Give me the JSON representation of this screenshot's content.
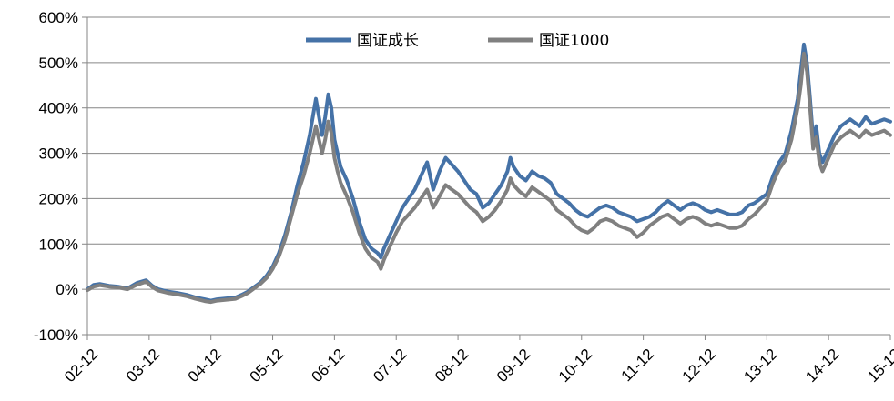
{
  "chart_data": {
    "type": "line",
    "title": "",
    "xlabel": "",
    "ylabel": "",
    "ylim": [
      -100,
      600
    ],
    "y_unit": "%",
    "y_ticks": [
      "600%",
      "500%",
      "400%",
      "300%",
      "200%",
      "100%",
      "0%",
      "-100%"
    ],
    "y_tick_values": [
      600,
      500,
      400,
      300,
      200,
      100,
      0,
      -100
    ],
    "x_ticks": [
      "02-12",
      "03-12",
      "04-12",
      "05-12",
      "06-12",
      "07-12",
      "08-12",
      "09-12",
      "10-12",
      "11-12",
      "12-12",
      "13-12",
      "14-12",
      "15-12"
    ],
    "grid": "horizontal",
    "legend_position": "top-center",
    "series": [
      {
        "name": "国证成长",
        "color": "#4572A7",
        "points": [
          [
            0,
            0
          ],
          [
            0.1,
            10
          ],
          [
            0.2,
            12
          ],
          [
            0.35,
            8
          ],
          [
            0.5,
            6
          ],
          [
            0.65,
            2
          ],
          [
            0.8,
            14
          ],
          [
            0.95,
            20
          ],
          [
            1.05,
            8
          ],
          [
            1.15,
            0
          ],
          [
            1.3,
            -5
          ],
          [
            1.45,
            -8
          ],
          [
            1.6,
            -12
          ],
          [
            1.75,
            -18
          ],
          [
            1.9,
            -22
          ],
          [
            2.0,
            -25
          ],
          [
            2.1,
            -22
          ],
          [
            2.25,
            -20
          ],
          [
            2.4,
            -18
          ],
          [
            2.5,
            -12
          ],
          [
            2.6,
            -5
          ],
          [
            2.7,
            5
          ],
          [
            2.8,
            15
          ],
          [
            2.9,
            30
          ],
          [
            3.0,
            50
          ],
          [
            3.1,
            80
          ],
          [
            3.2,
            120
          ],
          [
            3.3,
            170
          ],
          [
            3.4,
            230
          ],
          [
            3.5,
            280
          ],
          [
            3.6,
            340
          ],
          [
            3.7,
            420
          ],
          [
            3.75,
            380
          ],
          [
            3.8,
            340
          ],
          [
            3.85,
            380
          ],
          [
            3.9,
            430
          ],
          [
            3.95,
            400
          ],
          [
            4.0,
            330
          ],
          [
            4.05,
            300
          ],
          [
            4.1,
            270
          ],
          [
            4.2,
            240
          ],
          [
            4.3,
            200
          ],
          [
            4.4,
            150
          ],
          [
            4.5,
            110
          ],
          [
            4.6,
            90
          ],
          [
            4.7,
            80
          ],
          [
            4.75,
            70
          ],
          [
            4.8,
            90
          ],
          [
            4.9,
            120
          ],
          [
            5.0,
            150
          ],
          [
            5.1,
            180
          ],
          [
            5.2,
            200
          ],
          [
            5.3,
            220
          ],
          [
            5.4,
            250
          ],
          [
            5.5,
            280
          ],
          [
            5.55,
            250
          ],
          [
            5.6,
            220
          ],
          [
            5.7,
            260
          ],
          [
            5.8,
            290
          ],
          [
            5.9,
            275
          ],
          [
            6.0,
            260
          ],
          [
            6.1,
            240
          ],
          [
            6.2,
            220
          ],
          [
            6.3,
            210
          ],
          [
            6.4,
            180
          ],
          [
            6.5,
            190
          ],
          [
            6.6,
            210
          ],
          [
            6.7,
            230
          ],
          [
            6.8,
            260
          ],
          [
            6.85,
            290
          ],
          [
            6.9,
            270
          ],
          [
            7.0,
            250
          ],
          [
            7.1,
            240
          ],
          [
            7.2,
            260
          ],
          [
            7.3,
            250
          ],
          [
            7.4,
            245
          ],
          [
            7.5,
            235
          ],
          [
            7.6,
            210
          ],
          [
            7.7,
            200
          ],
          [
            7.8,
            190
          ],
          [
            7.9,
            175
          ],
          [
            8.0,
            165
          ],
          [
            8.1,
            160
          ],
          [
            8.2,
            170
          ],
          [
            8.3,
            180
          ],
          [
            8.4,
            185
          ],
          [
            8.5,
            180
          ],
          [
            8.6,
            170
          ],
          [
            8.7,
            165
          ],
          [
            8.8,
            160
          ],
          [
            8.9,
            150
          ],
          [
            9.0,
            155
          ],
          [
            9.1,
            160
          ],
          [
            9.2,
            170
          ],
          [
            9.3,
            185
          ],
          [
            9.4,
            195
          ],
          [
            9.5,
            185
          ],
          [
            9.6,
            175
          ],
          [
            9.7,
            185
          ],
          [
            9.8,
            190
          ],
          [
            9.9,
            185
          ],
          [
            10.0,
            175
          ],
          [
            10.1,
            170
          ],
          [
            10.2,
            175
          ],
          [
            10.3,
            170
          ],
          [
            10.4,
            165
          ],
          [
            10.5,
            165
          ],
          [
            10.6,
            170
          ],
          [
            10.7,
            185
          ],
          [
            10.8,
            190
          ],
          [
            10.9,
            200
          ],
          [
            11.0,
            210
          ],
          [
            11.1,
            250
          ],
          [
            11.2,
            280
          ],
          [
            11.3,
            300
          ],
          [
            11.4,
            350
          ],
          [
            11.5,
            420
          ],
          [
            11.55,
            480
          ],
          [
            11.6,
            540
          ],
          [
            11.65,
            500
          ],
          [
            11.7,
            420
          ],
          [
            11.75,
            330
          ],
          [
            11.8,
            360
          ],
          [
            11.85,
            300
          ],
          [
            11.9,
            280
          ],
          [
            12.0,
            310
          ],
          [
            12.1,
            340
          ],
          [
            12.2,
            360
          ],
          [
            12.3,
            370
          ],
          [
            12.35,
            375
          ],
          [
            12.4,
            370
          ],
          [
            12.5,
            360
          ],
          [
            12.6,
            380
          ],
          [
            12.7,
            365
          ],
          [
            12.8,
            370
          ],
          [
            12.9,
            375
          ],
          [
            13.0,
            370
          ]
        ]
      },
      {
        "name": "国证1000",
        "color": "#808080",
        "points": [
          [
            0,
            -2
          ],
          [
            0.1,
            6
          ],
          [
            0.2,
            9
          ],
          [
            0.35,
            6
          ],
          [
            0.5,
            4
          ],
          [
            0.65,
            0
          ],
          [
            0.8,
            10
          ],
          [
            0.95,
            17
          ],
          [
            1.05,
            5
          ],
          [
            1.15,
            -3
          ],
          [
            1.3,
            -8
          ],
          [
            1.45,
            -11
          ],
          [
            1.6,
            -15
          ],
          [
            1.75,
            -21
          ],
          [
            1.9,
            -26
          ],
          [
            2.0,
            -28
          ],
          [
            2.1,
            -25
          ],
          [
            2.25,
            -23
          ],
          [
            2.4,
            -21
          ],
          [
            2.5,
            -15
          ],
          [
            2.6,
            -8
          ],
          [
            2.7,
            2
          ],
          [
            2.8,
            12
          ],
          [
            2.9,
            25
          ],
          [
            3.0,
            45
          ],
          [
            3.1,
            72
          ],
          [
            3.2,
            110
          ],
          [
            3.3,
            160
          ],
          [
            3.4,
            210
          ],
          [
            3.5,
            250
          ],
          [
            3.6,
            300
          ],
          [
            3.7,
            360
          ],
          [
            3.75,
            330
          ],
          [
            3.8,
            300
          ],
          [
            3.85,
            330
          ],
          [
            3.9,
            370
          ],
          [
            3.95,
            345
          ],
          [
            4.0,
            290
          ],
          [
            4.05,
            260
          ],
          [
            4.1,
            235
          ],
          [
            4.2,
            205
          ],
          [
            4.3,
            170
          ],
          [
            4.4,
            125
          ],
          [
            4.5,
            90
          ],
          [
            4.6,
            70
          ],
          [
            4.7,
            60
          ],
          [
            4.75,
            45
          ],
          [
            4.8,
            65
          ],
          [
            4.9,
            95
          ],
          [
            5.0,
            125
          ],
          [
            5.1,
            150
          ],
          [
            5.2,
            165
          ],
          [
            5.3,
            180
          ],
          [
            5.4,
            200
          ],
          [
            5.5,
            220
          ],
          [
            5.55,
            200
          ],
          [
            5.6,
            180
          ],
          [
            5.7,
            205
          ],
          [
            5.8,
            230
          ],
          [
            5.9,
            220
          ],
          [
            6.0,
            210
          ],
          [
            6.1,
            195
          ],
          [
            6.2,
            180
          ],
          [
            6.3,
            170
          ],
          [
            6.4,
            150
          ],
          [
            6.5,
            160
          ],
          [
            6.6,
            175
          ],
          [
            6.7,
            195
          ],
          [
            6.8,
            220
          ],
          [
            6.85,
            245
          ],
          [
            6.9,
            230
          ],
          [
            7.0,
            215
          ],
          [
            7.1,
            205
          ],
          [
            7.2,
            225
          ],
          [
            7.3,
            215
          ],
          [
            7.4,
            205
          ],
          [
            7.5,
            195
          ],
          [
            7.6,
            175
          ],
          [
            7.7,
            165
          ],
          [
            7.8,
            155
          ],
          [
            7.9,
            140
          ],
          [
            8.0,
            130
          ],
          [
            8.1,
            125
          ],
          [
            8.2,
            135
          ],
          [
            8.3,
            150
          ],
          [
            8.4,
            155
          ],
          [
            8.5,
            150
          ],
          [
            8.6,
            140
          ],
          [
            8.7,
            135
          ],
          [
            8.8,
            130
          ],
          [
            8.9,
            115
          ],
          [
            9.0,
            125
          ],
          [
            9.1,
            140
          ],
          [
            9.2,
            150
          ],
          [
            9.3,
            160
          ],
          [
            9.4,
            165
          ],
          [
            9.5,
            155
          ],
          [
            9.6,
            145
          ],
          [
            9.7,
            155
          ],
          [
            9.8,
            160
          ],
          [
            9.9,
            155
          ],
          [
            10.0,
            145
          ],
          [
            10.1,
            140
          ],
          [
            10.2,
            145
          ],
          [
            10.3,
            140
          ],
          [
            10.4,
            135
          ],
          [
            10.5,
            135
          ],
          [
            10.6,
            140
          ],
          [
            10.7,
            155
          ],
          [
            10.8,
            165
          ],
          [
            10.9,
            180
          ],
          [
            11.0,
            195
          ],
          [
            11.1,
            235
          ],
          [
            11.2,
            265
          ],
          [
            11.3,
            285
          ],
          [
            11.4,
            330
          ],
          [
            11.5,
            400
          ],
          [
            11.55,
            450
          ],
          [
            11.6,
            520
          ],
          [
            11.65,
            480
          ],
          [
            11.7,
            400
          ],
          [
            11.75,
            310
          ],
          [
            11.8,
            335
          ],
          [
            11.85,
            280
          ],
          [
            11.9,
            260
          ],
          [
            12.0,
            290
          ],
          [
            12.1,
            320
          ],
          [
            12.2,
            335
          ],
          [
            12.3,
            345
          ],
          [
            12.35,
            350
          ],
          [
            12.4,
            345
          ],
          [
            12.5,
            335
          ],
          [
            12.6,
            350
          ],
          [
            12.7,
            340
          ],
          [
            12.8,
            345
          ],
          [
            12.9,
            350
          ],
          [
            13.0,
            340
          ]
        ]
      }
    ]
  }
}
